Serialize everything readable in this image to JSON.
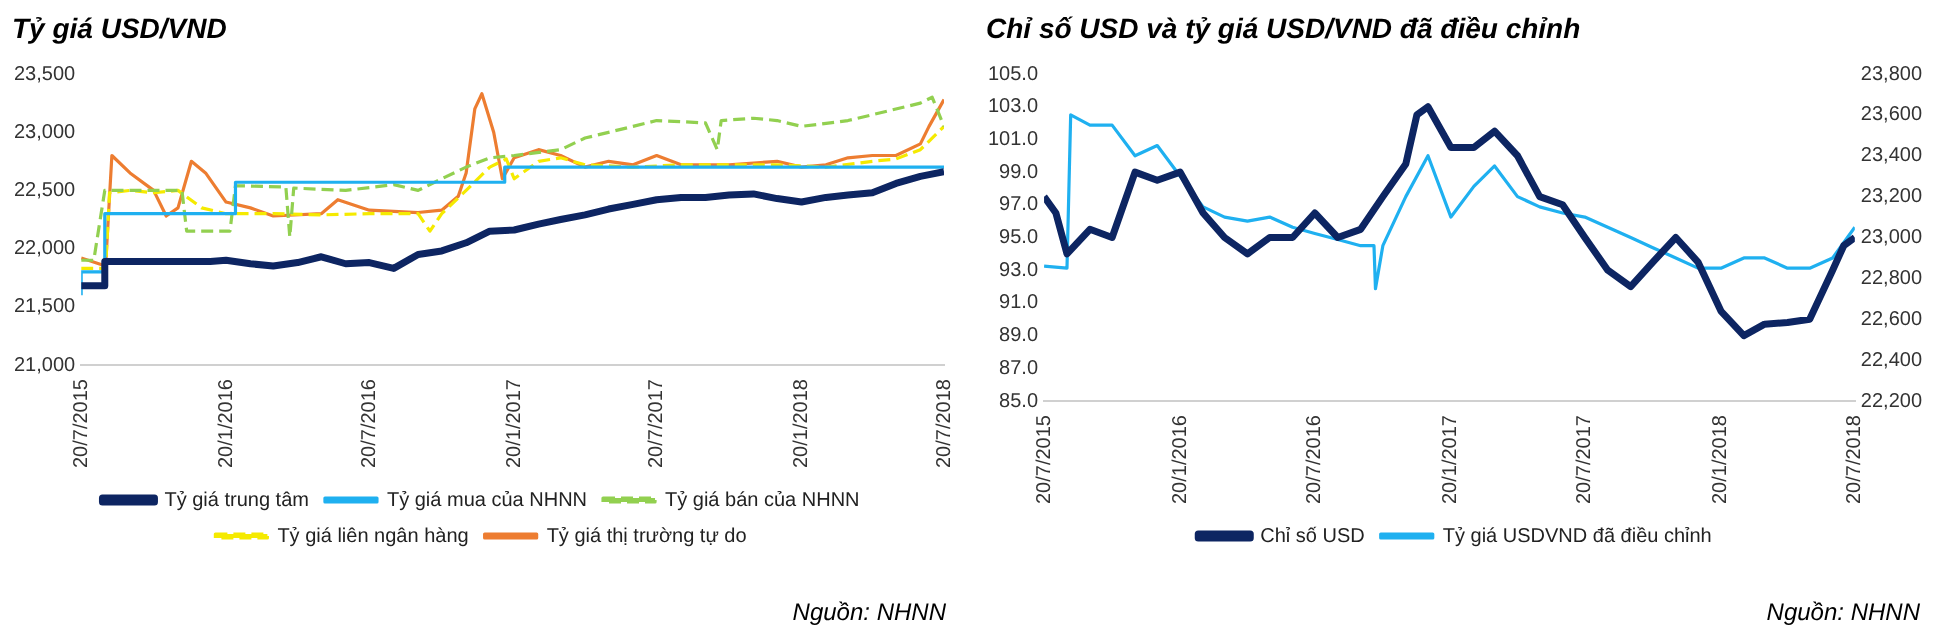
{
  "chart_data": [
    {
      "type": "line",
      "title": "Tỷ giá USD/VND",
      "marker": "none",
      "legend": "bottom",
      "xlim": [
        "2015-07-20",
        "2018-07-20"
      ],
      "xticks": [
        {
          "value": "2015-07-20",
          "label": "20/7/2015"
        },
        {
          "value": "2016-01-20",
          "label": "20/1/2016"
        },
        {
          "value": "2016-07-20",
          "label": "20/7/2016"
        },
        {
          "value": "2017-01-20",
          "label": "20/1/2017"
        },
        {
          "value": "2017-07-20",
          "label": "20/7/2017"
        },
        {
          "value": "2018-01-20",
          "label": "20/1/2018"
        },
        {
          "value": "2018-07-20",
          "label": "20/7/2018"
        }
      ],
      "ylim": [
        21000,
        23500
      ],
      "yticks": [
        {
          "value": 21000,
          "label": "21,000"
        },
        {
          "value": 21500,
          "label": "21,500"
        },
        {
          "value": 22000,
          "label": "22,000"
        },
        {
          "value": 22500,
          "label": "22,500"
        },
        {
          "value": 23000,
          "label": "23,000"
        },
        {
          "value": 23500,
          "label": "23,500"
        }
      ],
      "annotations": [
        "Nguồn: NHNN"
      ],
      "series": [
        {
          "name": "Tỷ giá trung tâm",
          "color": "#0d2562",
          "line_style": "solid",
          "x": [
            "2015-07-20",
            "2015-08-18",
            "2015-08-19",
            "2015-12-31",
            "2016-01-20",
            "2016-02-20",
            "2016-03-20",
            "2016-04-20",
            "2016-05-20",
            "2016-06-20",
            "2016-07-20",
            "2016-08-20",
            "2016-09-20",
            "2016-10-20",
            "2016-11-20",
            "2016-12-20",
            "2017-01-20",
            "2017-02-20",
            "2017-03-20",
            "2017-04-20",
            "2017-05-20",
            "2017-06-20",
            "2017-07-20",
            "2017-08-20",
            "2017-09-20",
            "2017-10-20",
            "2017-11-20",
            "2017-12-20",
            "2018-01-20",
            "2018-02-20",
            "2018-03-20",
            "2018-04-20",
            "2018-05-20",
            "2018-06-20",
            "2018-07-20"
          ],
          "values": [
            21680,
            21680,
            21890,
            21890,
            21900,
            21870,
            21850,
            21880,
            21930,
            21870,
            21880,
            21830,
            21950,
            21980,
            22050,
            22150,
            22160,
            22210,
            22250,
            22290,
            22340,
            22380,
            22420,
            22440,
            22440,
            22460,
            22470,
            22430,
            22400,
            22440,
            22460,
            22480,
            22560,
            22620,
            22660
          ]
        },
        {
          "name": "Tỷ giá mua của NHNN",
          "type": "step",
          "color": "#1fb0f0",
          "line_style": "solid",
          "x": [
            "2015-07-20",
            "2015-08-19",
            "2016-02-01",
            "2017-01-08",
            "2017-04-05",
            "2018-07-20"
          ],
          "values": [
            21600,
            21800,
            22300,
            22570,
            22700,
            22700
          ]
        },
        {
          "name": "Tỷ giá bán của NHNN",
          "color": "#92d050",
          "line_style": "dashed",
          "x": [
            "2015-07-20",
            "2015-08-05",
            "2015-08-19",
            "2015-11-25",
            "2015-12-01",
            "2016-01-25",
            "2016-02-01",
            "2016-04-05",
            "2016-04-10",
            "2016-04-15",
            "2016-06-20",
            "2016-08-20",
            "2016-09-20",
            "2016-10-20",
            "2016-11-20",
            "2016-12-20",
            "2017-01-20",
            "2017-03-20",
            "2017-04-20",
            "2017-06-20",
            "2017-07-20",
            "2017-09-20",
            "2017-10-05",
            "2017-10-10",
            "2017-11-20",
            "2017-12-20",
            "2018-01-20",
            "2018-03-20",
            "2018-04-20",
            "2018-06-20",
            "2018-07-05",
            "2018-07-20"
          ],
          "values": [
            21900,
            21900,
            22500,
            22500,
            22150,
            22150,
            22540,
            22530,
            22100,
            22520,
            22500,
            22550,
            22500,
            22600,
            22700,
            22780,
            22800,
            22850,
            22950,
            23050,
            23100,
            23080,
            22850,
            23100,
            23120,
            23100,
            23050,
            23100,
            23150,
            23250,
            23300,
            23050
          ]
        },
        {
          "name": "Tỷ giá liên ngân hàng",
          "color": "#f5ea00",
          "line_style": "dashed",
          "x": [
            "2015-07-20",
            "2015-08-20",
            "2015-08-25",
            "2015-09-20",
            "2015-10-20",
            "2015-11-20",
            "2015-12-20",
            "2016-01-20",
            "2016-03-20",
            "2016-05-20",
            "2016-07-20",
            "2016-09-20",
            "2016-10-05",
            "2016-10-20",
            "2016-11-20",
            "2016-12-20",
            "2017-01-10",
            "2017-01-20",
            "2017-02-20",
            "2017-03-20",
            "2017-04-20",
            "2017-06-20",
            "2017-08-20",
            "2017-10-20",
            "2017-12-20",
            "2018-02-20",
            "2018-04-20",
            "2018-05-20",
            "2018-06-20",
            "2018-07-20"
          ],
          "values": [
            21830,
            21830,
            22480,
            22500,
            22480,
            22500,
            22350,
            22300,
            22300,
            22290,
            22300,
            22300,
            22150,
            22300,
            22500,
            22700,
            22770,
            22600,
            22750,
            22780,
            22720,
            22700,
            22720,
            22720,
            22720,
            22700,
            22750,
            22770,
            22850,
            23050
          ]
        },
        {
          "name": "Tỷ giá thị trường tự do",
          "color": "#ed7d31",
          "line_style": "solid",
          "x": [
            "2015-07-20",
            "2015-08-20",
            "2015-08-28",
            "2015-09-20",
            "2015-10-20",
            "2015-11-05",
            "2015-11-20",
            "2015-12-07",
            "2015-12-25",
            "2016-01-20",
            "2016-02-20",
            "2016-03-20",
            "2016-05-20",
            "2016-06-10",
            "2016-07-20",
            "2016-09-20",
            "2016-10-20",
            "2016-11-10",
            "2016-11-20",
            "2016-12-01",
            "2016-12-10",
            "2016-12-25",
            "2017-01-05",
            "2017-01-20",
            "2017-02-20",
            "2017-03-20",
            "2017-04-20",
            "2017-05-20",
            "2017-06-20",
            "2017-07-20",
            "2017-08-20",
            "2017-10-20",
            "2017-12-20",
            "2018-01-20",
            "2018-02-20",
            "2018-03-20",
            "2018-04-20",
            "2018-05-20",
            "2018-06-20",
            "2018-07-01",
            "2018-07-20"
          ],
          "values": [
            21920,
            21850,
            22800,
            22650,
            22500,
            22280,
            22350,
            22750,
            22650,
            22400,
            22350,
            22280,
            22300,
            22420,
            22330,
            22310,
            22330,
            22450,
            22650,
            23200,
            23330,
            23000,
            22600,
            22780,
            22850,
            22800,
            22700,
            22750,
            22720,
            22800,
            22720,
            22720,
            22750,
            22700,
            22720,
            22780,
            22800,
            22800,
            22900,
            23050,
            23280
          ]
        }
      ]
    },
    {
      "type": "line",
      "title": "Chỉ số USD và tỷ giá USD/VND đã điều chỉnh",
      "marker": "none",
      "legend": "bottom",
      "xlim": [
        "2015-07-20",
        "2018-07-20"
      ],
      "xticks": [
        {
          "value": "2015-07-20",
          "label": "20/7/2015"
        },
        {
          "value": "2016-01-20",
          "label": "20/1/2016"
        },
        {
          "value": "2016-07-20",
          "label": "20/7/2016"
        },
        {
          "value": "2017-01-20",
          "label": "20/1/2017"
        },
        {
          "value": "2017-07-20",
          "label": "20/7/2017"
        },
        {
          "value": "2018-01-20",
          "label": "20/1/2018"
        },
        {
          "value": "2018-07-20",
          "label": "20/7/2018"
        }
      ],
      "ylim": [
        85,
        105
      ],
      "yticks": [
        {
          "value": 85,
          "label": "85.0"
        },
        {
          "value": 87,
          "label": "87.0"
        },
        {
          "value": 89,
          "label": "89.0"
        },
        {
          "value": 91,
          "label": "91.0"
        },
        {
          "value": 93,
          "label": "93.0"
        },
        {
          "value": 95,
          "label": "95.0"
        },
        {
          "value": 97,
          "label": "97.0"
        },
        {
          "value": 99,
          "label": "99.0"
        },
        {
          "value": 101,
          "label": "101.0"
        },
        {
          "value": 103,
          "label": "103.0"
        },
        {
          "value": 105,
          "label": "105.0"
        }
      ],
      "y2lim": [
        22200,
        23800
      ],
      "y2ticks": [
        {
          "value": 22200,
          "label": "22,200"
        },
        {
          "value": 22400,
          "label": "22,400"
        },
        {
          "value": 22600,
          "label": "22,600"
        },
        {
          "value": 22800,
          "label": "22,800"
        },
        {
          "value": 23000,
          "label": "23,000"
        },
        {
          "value": 23200,
          "label": "23,200"
        },
        {
          "value": 23400,
          "label": "23,400"
        },
        {
          "value": 23600,
          "label": "23,600"
        },
        {
          "value": 23800,
          "label": "23,800"
        }
      ],
      "annotations": [
        "Nguồn: NHNN"
      ],
      "series": [
        {
          "name": "Chỉ số USD",
          "color": "#0d2562",
          "line_style": "solid",
          "x": [
            "2015-07-20",
            "2015-08-05",
            "2015-08-20",
            "2015-09-20",
            "2015-10-20",
            "2015-11-20",
            "2015-12-20",
            "2016-01-20",
            "2016-02-20",
            "2016-03-20",
            "2016-04-20",
            "2016-05-20",
            "2016-06-20",
            "2016-07-20",
            "2016-08-20",
            "2016-09-20",
            "2016-10-20",
            "2016-11-20",
            "2016-12-05",
            "2016-12-20",
            "2017-01-20",
            "2017-02-20",
            "2017-03-20",
            "2017-04-20",
            "2017-05-20",
            "2017-06-20",
            "2017-07-20",
            "2017-08-20",
            "2017-09-20",
            "2017-10-20",
            "2017-11-20",
            "2017-12-20",
            "2018-01-20",
            "2018-02-20",
            "2018-03-20",
            "2018-04-20",
            "2018-05-20",
            "2018-06-20",
            "2018-07-05",
            "2018-07-20"
          ],
          "values": [
            97.5,
            96.5,
            94,
            95.5,
            95,
            99,
            98.5,
            99,
            96.5,
            95,
            94,
            95,
            95,
            96.5,
            95,
            95.5,
            97.5,
            99.5,
            102.5,
            103,
            100.5,
            100.5,
            101.5,
            100,
            97.5,
            97,
            95,
            93,
            92,
            93.5,
            95,
            93.5,
            90.5,
            89,
            89.7,
            89.8,
            90,
            93,
            94.5,
            95
          ]
        },
        {
          "name": "Tỷ giá USDVND đã điều chỉnh",
          "axis": "y2",
          "color": "#1fb0f0",
          "line_style": "solid",
          "x": [
            "2015-07-20",
            "2015-08-20",
            "2015-08-25",
            "2015-09-20",
            "2015-10-20",
            "2015-11-20",
            "2015-12-20",
            "2016-01-20",
            "2016-02-20",
            "2016-03-20",
            "2016-04-20",
            "2016-05-20",
            "2016-06-20",
            "2016-07-20",
            "2016-08-20",
            "2016-09-20",
            "2016-10-08",
            "2016-10-10",
            "2016-10-20",
            "2016-11-20",
            "2016-12-20",
            "2017-01-20",
            "2017-02-20",
            "2017-03-20",
            "2017-04-20",
            "2017-05-20",
            "2017-06-20",
            "2017-07-20",
            "2017-08-20",
            "2017-09-20",
            "2017-10-20",
            "2017-11-20",
            "2017-12-20",
            "2018-01-20",
            "2018-02-20",
            "2018-03-20",
            "2018-04-20",
            "2018-05-20",
            "2018-06-20",
            "2018-07-20"
          ],
          "values": [
            22860,
            22850,
            23600,
            23550,
            23550,
            23400,
            23450,
            23300,
            23150,
            23100,
            23080,
            23100,
            23050,
            23020,
            22990,
            22960,
            22960,
            22750,
            22960,
            23200,
            23400,
            23100,
            23250,
            23350,
            23200,
            23150,
            23120,
            23100,
            23050,
            23000,
            22950,
            22900,
            22850,
            22850,
            22900,
            22900,
            22850,
            22850,
            22900,
            23050
          ]
        }
      ]
    }
  ]
}
